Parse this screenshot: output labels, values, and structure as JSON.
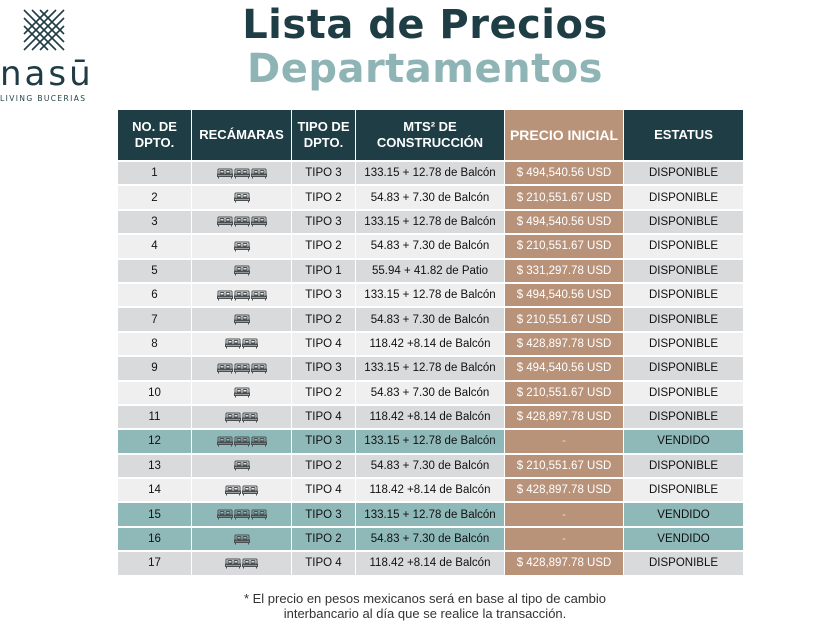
{
  "logo": {
    "name": "nasū",
    "subtitle": "LIVING BUCERIAS"
  },
  "title": {
    "line1": "Lista de Precios",
    "line2": "Departamentos"
  },
  "colors": {
    "header": "#1e3d45",
    "price_column": "#b89279",
    "sold_row": "#8fb8b8",
    "title_light": "#8fb4b6"
  },
  "table": {
    "headers": [
      "NO. DE DPTO.",
      "RECÁMARAS",
      "TIPO DE DPTO.",
      "MTS² DE CONSTRUCCIÓN",
      "PRECIO INICIAL",
      "ESTATUS"
    ],
    "rows": [
      {
        "no": "1",
        "bedrooms": 3,
        "tipo": "TIPO 3",
        "mts": "133.15 + 12.78 de Balcón",
        "precio": "$ 494,540.56 USD",
        "estatus": "DISPONIBLE"
      },
      {
        "no": "2",
        "bedrooms": 1,
        "tipo": "TIPO 2",
        "mts": "54.83 + 7.30 de Balcón",
        "precio": "$ 210,551.67 USD",
        "estatus": "DISPONIBLE"
      },
      {
        "no": "3",
        "bedrooms": 3,
        "tipo": "TIPO 3",
        "mts": "133.15 + 12.78 de Balcón",
        "precio": "$ 494,540.56 USD",
        "estatus": "DISPONIBLE"
      },
      {
        "no": "4",
        "bedrooms": 1,
        "tipo": "TIPO 2",
        "mts": "54.83 + 7.30 de Balcón",
        "precio": "$ 210,551.67 USD",
        "estatus": "DISPONIBLE"
      },
      {
        "no": "5",
        "bedrooms": 1,
        "tipo": "TIPO 1",
        "mts": "55.94 + 41.82 de Patio",
        "precio": "$ 331,297.78 USD",
        "estatus": "DISPONIBLE"
      },
      {
        "no": "6",
        "bedrooms": 3,
        "tipo": "TIPO 3",
        "mts": "133.15 + 12.78 de Balcón",
        "precio": "$ 494,540.56 USD",
        "estatus": "DISPONIBLE"
      },
      {
        "no": "7",
        "bedrooms": 1,
        "tipo": "TIPO 2",
        "mts": "54.83 + 7.30 de Balcón",
        "precio": "$ 210,551.67 USD",
        "estatus": "DISPONIBLE"
      },
      {
        "no": "8",
        "bedrooms": 2,
        "tipo": "TIPO 4",
        "mts": "118.42 +8.14 de Balcón",
        "precio": "$ 428,897.78 USD",
        "estatus": "DISPONIBLE"
      },
      {
        "no": "9",
        "bedrooms": 3,
        "tipo": "TIPO 3",
        "mts": "133.15 + 12.78 de Balcón",
        "precio": "$ 494,540.56 USD",
        "estatus": "DISPONIBLE"
      },
      {
        "no": "10",
        "bedrooms": 1,
        "tipo": "TIPO 2",
        "mts": "54.83 + 7.30 de Balcón",
        "precio": "$ 210,551.67 USD",
        "estatus": "DISPONIBLE"
      },
      {
        "no": "11",
        "bedrooms": 2,
        "tipo": "TIPO 4",
        "mts": "118.42 +8.14 de Balcón",
        "precio": "$ 428,897.78 USD",
        "estatus": "DISPONIBLE"
      },
      {
        "no": "12",
        "bedrooms": 3,
        "tipo": "TIPO 3",
        "mts": "133.15 + 12.78 de Balcón",
        "precio": "-",
        "estatus": "VENDIDO"
      },
      {
        "no": "13",
        "bedrooms": 1,
        "tipo": "TIPO 2",
        "mts": "54.83 + 7.30 de Balcón",
        "precio": "$ 210,551.67 USD",
        "estatus": "DISPONIBLE"
      },
      {
        "no": "14",
        "bedrooms": 2,
        "tipo": "TIPO 4",
        "mts": "118.42 +8.14 de Balcón",
        "precio": "$ 428,897.78 USD",
        "estatus": "DISPONIBLE"
      },
      {
        "no": "15",
        "bedrooms": 3,
        "tipo": "TIPO 3",
        "mts": "133.15 + 12.78 de Balcón",
        "precio": "-",
        "estatus": "VENDIDO"
      },
      {
        "no": "16",
        "bedrooms": 1,
        "tipo": "TIPO 2",
        "mts": "54.83 + 7.30 de Balcón",
        "precio": "-",
        "estatus": "VENDIDO"
      },
      {
        "no": "17",
        "bedrooms": 2,
        "tipo": "TIPO 4",
        "mts": "118.42 +8.14 de Balcón",
        "precio": "$ 428,897.78 USD",
        "estatus": "DISPONIBLE"
      }
    ]
  },
  "footnote": {
    "line1": "* El precio en pesos mexicanos será en base al tipo de cambio",
    "line2": "interbancario al día que se realice la transacción."
  }
}
